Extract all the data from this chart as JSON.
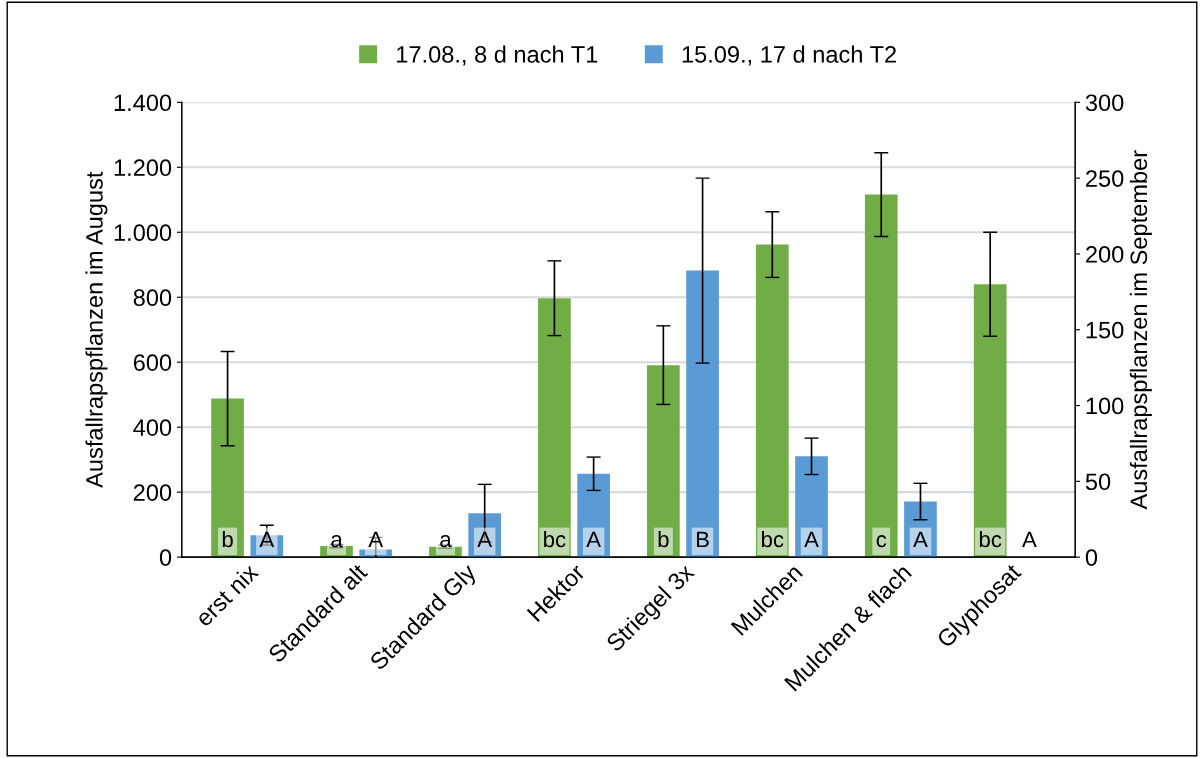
{
  "chart_data": {
    "type": "bar",
    "categories": [
      "erst nix",
      "Standard alt",
      "Standard Gly",
      "Hektor",
      "Striegel 3x",
      "Mulchen",
      "Mulchen & flach",
      "Glyphosat"
    ],
    "series": [
      {
        "name": "17.08., 8 d nach T1",
        "color": "#70ad47",
        "values": [
          488,
          34,
          32,
          797,
          591,
          962,
          1116,
          840
        ],
        "errors": [
          145,
          5,
          5,
          115,
          121,
          101,
          129,
          160
        ],
        "value_labels": [
          "b",
          "a",
          "a",
          "bc",
          "b",
          "bc",
          "c",
          "bc"
        ]
      },
      {
        "name": "15.09., 17 d nach T2",
        "color": "#5b9bd5",
        "axis": "y2",
        "values": [
          14.5,
          5,
          29,
          55,
          189,
          66.5,
          36.7,
          0
        ],
        "errors": [
          6.5,
          8,
          19,
          11,
          61,
          12,
          12,
          null
        ],
        "value_labels": [
          "A",
          "A",
          "A",
          "A",
          "B",
          "A",
          "A",
          "A"
        ]
      }
    ],
    "ylabel": "Ausfallrapspflanzen im August",
    "y2label": "Ausfallrapspflanzen im September",
    "ylim": [
      0,
      1400
    ],
    "yticks": [
      0,
      200,
      400,
      600,
      800,
      {
        "value": 1000,
        "label": "1.000"
      },
      {
        "value": 1200,
        "label": "1.200"
      },
      {
        "value": 1400,
        "label": "1.400"
      }
    ],
    "y2lim": [
      0,
      300
    ],
    "y2ticks": [
      0,
      50,
      100,
      150,
      200,
      250,
      300
    ],
    "grid": "y",
    "legend": "top"
  }
}
